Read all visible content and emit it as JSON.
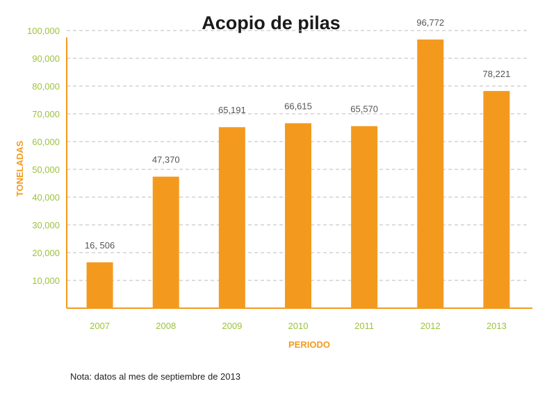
{
  "chart_data": {
    "type": "bar",
    "title": "Acopio de pilas",
    "xlabel": "PERIODO",
    "ylabel": "TONELADAS",
    "categories": [
      "2007",
      "2008",
      "2009",
      "2010",
      "2011",
      "2012",
      "2013"
    ],
    "values": [
      16506,
      47370,
      65191,
      66615,
      65570,
      96772,
      78221
    ],
    "value_labels": [
      "16, 506",
      "47,370",
      "65,191",
      "66,615",
      "65,570",
      "96,772",
      "78,221"
    ],
    "ylim": [
      0,
      100000
    ],
    "yticks": [
      10000,
      20000,
      30000,
      40000,
      50000,
      60000,
      70000,
      80000,
      90000,
      100000
    ],
    "ytick_labels": [
      "10,000",
      "20,000",
      "30,000",
      "40,000",
      "50,000",
      "60,000",
      "70,000",
      "80,000",
      "90,000",
      "100,000"
    ],
    "grid": "horizontal dashed",
    "colors": {
      "bar": "#f39a1e",
      "axis": "#f39a1e",
      "tick_labels": "#9bc23b",
      "grid": "#bbbbbb"
    }
  },
  "note": "Nota: datos al mes de septiembre de 2013"
}
